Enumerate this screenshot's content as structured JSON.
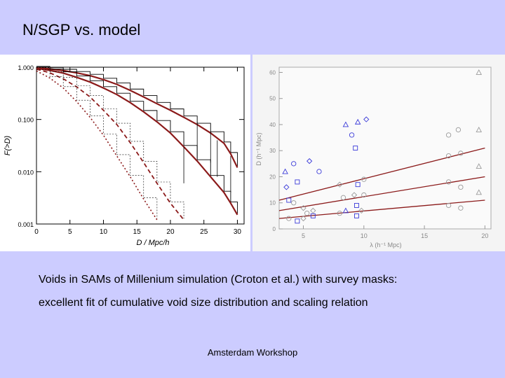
{
  "slide": {
    "title": "N/SGP vs. model",
    "caption_line1": "Voids in SAMs of Millenium simulation (Croton et al.) with survey masks:",
    "caption_line2": "excellent fit of cumulative void size distribution and scaling relation",
    "footer": "Amsterdam Workshop"
  },
  "colors": {
    "background": "#ccccff",
    "model_curve": "#8b1a1a",
    "data_blue": "#3b3bd9"
  },
  "chart_data": [
    {
      "type": "line",
      "title": "",
      "xlabel": "D / Mpc/h",
      "ylabel": "F(>D)",
      "xlim": [
        0,
        31
      ],
      "ylim": [
        0.001,
        1
      ],
      "yscale": "log",
      "x_ticks": [
        "0",
        "5",
        "10",
        "15",
        "20",
        "25",
        "30"
      ],
      "y_ticks": [
        "1.000",
        "0.100",
        "0.010",
        "0.001"
      ],
      "series": [
        {
          "style": "model",
          "x": [
            0,
            2,
            4,
            6,
            8,
            10,
            12,
            14,
            16,
            18,
            20,
            22,
            24,
            26,
            28,
            29,
            30
          ],
          "y": [
            0.98,
            0.93,
            0.86,
            0.78,
            0.69,
            0.58,
            0.47,
            0.36,
            0.27,
            0.2,
            0.15,
            0.11,
            0.08,
            0.055,
            0.035,
            0.022,
            0.012
          ]
        },
        {
          "style": "model",
          "x": [
            0,
            2,
            4,
            6,
            8,
            10,
            12,
            14,
            16,
            18,
            20,
            22,
            24,
            26,
            28,
            29,
            30
          ],
          "y": [
            0.95,
            0.87,
            0.77,
            0.64,
            0.52,
            0.4,
            0.3,
            0.21,
            0.14,
            0.09,
            0.055,
            0.03,
            0.016,
            0.008,
            0.004,
            0.0025,
            0.0015
          ]
        },
        {
          "style": "dashed",
          "x": [
            0,
            2,
            4,
            6,
            8,
            10,
            12,
            14,
            16,
            18,
            20,
            22
          ],
          "y": [
            0.92,
            0.78,
            0.6,
            0.42,
            0.27,
            0.15,
            0.08,
            0.036,
            0.015,
            0.006,
            0.0025,
            0.0012
          ]
        },
        {
          "style": "dotted",
          "x": [
            0,
            2,
            4,
            6,
            8,
            10,
            12,
            14,
            16,
            18
          ],
          "y": [
            0.85,
            0.62,
            0.4,
            0.22,
            0.11,
            0.05,
            0.02,
            0.008,
            0.003,
            0.0012
          ]
        }
      ]
    },
    {
      "type": "scatter",
      "title": "",
      "xlabel": "λ (h⁻¹ Mpc)",
      "ylabel": "D (h⁻¹ Mpc)",
      "xlim": [
        3,
        20.5
      ],
      "ylim": [
        0,
        62
      ],
      "x_ticks": [
        "5",
        "10",
        "15",
        "20"
      ],
      "y_ticks": [
        "0",
        "10",
        "20",
        "30",
        "40",
        "50",
        "60"
      ],
      "lines": [
        {
          "x": [
            3,
            20
          ],
          "y": [
            11,
            31
          ]
        },
        {
          "x": [
            3,
            20
          ],
          "y": [
            7,
            20
          ]
        },
        {
          "x": [
            3,
            20
          ],
          "y": [
            4,
            11
          ]
        }
      ],
      "points": [
        {
          "x": 3.5,
          "y": 22,
          "m": "triangle",
          "c": "blue"
        },
        {
          "x": 4.2,
          "y": 25,
          "m": "circle",
          "c": "blue"
        },
        {
          "x": 5.5,
          "y": 26,
          "m": "diamond",
          "c": "blue"
        },
        {
          "x": 6.3,
          "y": 22,
          "m": "circle",
          "c": "blue"
        },
        {
          "x": 3.6,
          "y": 16,
          "m": "diamond",
          "c": "blue"
        },
        {
          "x": 4.5,
          "y": 18,
          "m": "square",
          "c": "blue"
        },
        {
          "x": 8.5,
          "y": 40,
          "m": "triangle",
          "c": "blue"
        },
        {
          "x": 9.0,
          "y": 36,
          "m": "circle",
          "c": "blue"
        },
        {
          "x": 9.5,
          "y": 41,
          "m": "triangle",
          "c": "blue"
        },
        {
          "x": 9.3,
          "y": 31,
          "m": "square",
          "c": "blue"
        },
        {
          "x": 10.2,
          "y": 42,
          "m": "diamond",
          "c": "blue"
        },
        {
          "x": 3.8,
          "y": 11,
          "m": "square",
          "c": "blue"
        },
        {
          "x": 4.2,
          "y": 10,
          "m": "circle",
          "c": "gray"
        },
        {
          "x": 5.0,
          "y": 8,
          "m": "diamond",
          "c": "gray"
        },
        {
          "x": 5.3,
          "y": 6,
          "m": "circle",
          "c": "gray"
        },
        {
          "x": 5.8,
          "y": 7,
          "m": "diamond",
          "c": "gray"
        },
        {
          "x": 4.5,
          "y": 3,
          "m": "square",
          "c": "blue"
        },
        {
          "x": 3.8,
          "y": 4,
          "m": "circle",
          "c": "gray"
        },
        {
          "x": 5.0,
          "y": 4,
          "m": "diamond",
          "c": "gray"
        },
        {
          "x": 5.8,
          "y": 5,
          "m": "square",
          "c": "blue"
        },
        {
          "x": 8.0,
          "y": 17,
          "m": "diamond",
          "c": "gray"
        },
        {
          "x": 9.5,
          "y": 17,
          "m": "square",
          "c": "blue"
        },
        {
          "x": 10.0,
          "y": 19,
          "m": "circle",
          "c": "gray"
        },
        {
          "x": 8.3,
          "y": 12,
          "m": "circle",
          "c": "gray"
        },
        {
          "x": 9.2,
          "y": 13,
          "m": "diamond",
          "c": "gray"
        },
        {
          "x": 10.0,
          "y": 13,
          "m": "circle",
          "c": "gray"
        },
        {
          "x": 8.5,
          "y": 7,
          "m": "triangle",
          "c": "blue"
        },
        {
          "x": 9.4,
          "y": 9,
          "m": "square",
          "c": "blue"
        },
        {
          "x": 9.4,
          "y": 5,
          "m": "square",
          "c": "blue"
        },
        {
          "x": 9.8,
          "y": 7,
          "m": "diamond",
          "c": "gray"
        },
        {
          "x": 8.0,
          "y": 6,
          "m": "circle",
          "c": "gray"
        },
        {
          "x": 17.0,
          "y": 36,
          "m": "circle",
          "c": "gray"
        },
        {
          "x": 17.8,
          "y": 38,
          "m": "circle",
          "c": "gray"
        },
        {
          "x": 19.5,
          "y": 38,
          "m": "triangle",
          "c": "gray"
        },
        {
          "x": 19.5,
          "y": 60,
          "m": "triangle",
          "c": "gray"
        },
        {
          "x": 17.0,
          "y": 28,
          "m": "circle",
          "c": "gray"
        },
        {
          "x": 18.0,
          "y": 29,
          "m": "circle",
          "c": "gray"
        },
        {
          "x": 19.5,
          "y": 24,
          "m": "triangle",
          "c": "gray"
        },
        {
          "x": 17.0,
          "y": 18,
          "m": "circle",
          "c": "gray"
        },
        {
          "x": 18.0,
          "y": 16,
          "m": "circle",
          "c": "gray"
        },
        {
          "x": 17.0,
          "y": 9,
          "m": "circle",
          "c": "gray"
        },
        {
          "x": 18.0,
          "y": 8,
          "m": "circle",
          "c": "gray"
        },
        {
          "x": 19.5,
          "y": 14,
          "m": "triangle",
          "c": "gray"
        }
      ]
    }
  ]
}
